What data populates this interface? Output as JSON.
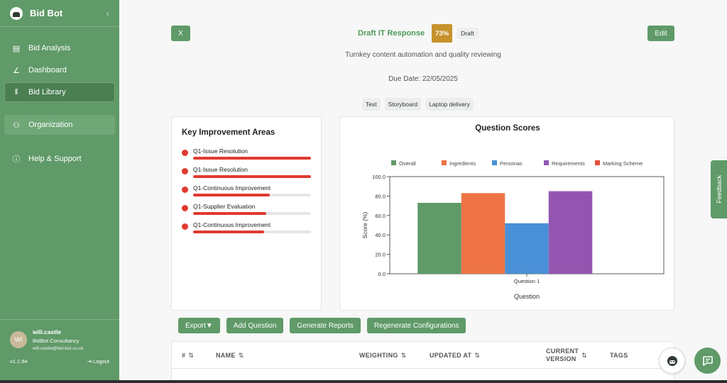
{
  "sidebar": {
    "app_name": "Bid Bot",
    "collapse_icon": "chevron-left-icon",
    "items": [
      {
        "label": "Bid Analysis",
        "icon": "document-icon"
      },
      {
        "label": "Dashboard",
        "icon": "line-chart-icon"
      },
      {
        "label": "Bid Library",
        "icon": "library-icon"
      }
    ],
    "organization": {
      "label": "Organization",
      "icon": "users-icon"
    },
    "help": {
      "label": "Help & Support",
      "icon": "help-circle-icon"
    },
    "user": {
      "initials": "WI",
      "name": "will.castle",
      "org": "BidBot Consultancy",
      "email": "will.castle@bid-bot.co.uk"
    },
    "version": "v1.1.94",
    "logout": "Logout"
  },
  "header": {
    "close_label": "X",
    "title": "Draft IT Response",
    "score": "73%",
    "status": "Draft",
    "edit_label": "Edit",
    "subtitle": "Turnkey content automation and quality reviewing",
    "due_date": "Due Date: 22/05/2025",
    "tags": [
      "Test",
      "Storyboard",
      "Laptop delivery"
    ]
  },
  "improvement": {
    "title": "Key Improvement Areas",
    "items": [
      {
        "label": "Q1-Issue Resolution",
        "progress": 1.0
      },
      {
        "label": "Q1-Issue Resolution",
        "progress": 1.0
      },
      {
        "label": "Q1-Continuous Improvement",
        "progress": 0.65
      },
      {
        "label": "Q1-Supplier Evaluation",
        "progress": 0.62
      },
      {
        "label": "Q1-Continuous Improvement",
        "progress": 0.6
      }
    ]
  },
  "chart_data": {
    "type": "bar",
    "title": "Question Scores",
    "categories": [
      "Question 1"
    ],
    "series": [
      {
        "name": "Overall",
        "values": [
          73
        ],
        "color": "#5f9a68"
      },
      {
        "name": "Ingredients",
        "values": [
          83
        ],
        "color": "#ee7445"
      },
      {
        "name": "Personas",
        "values": [
          52
        ],
        "color": "#4a90d6"
      },
      {
        "name": "Requirements",
        "values": [
          85
        ],
        "color": "#9356b0"
      },
      {
        "name": "Marking Scheme",
        "values": [
          0
        ],
        "color": "#e0503c"
      }
    ],
    "xlabel": "Question",
    "ylabel": "Score (%)",
    "ylim": [
      0,
      100
    ],
    "yticks": [
      "0.0",
      "20.0",
      "40.0",
      "60.0",
      "80.0",
      "100.0"
    ],
    "legend": "top"
  },
  "toolbar": {
    "export": "Export▼",
    "add_question": "Add Question",
    "generate_reports": "Generate Reports",
    "regenerate": "Regenerate Configurations"
  },
  "table": {
    "columns": [
      "#",
      "NAME",
      "WEIGHTING",
      "UPDATED AT",
      "CURRENT VERSION",
      "TAGS"
    ]
  },
  "feedback": "Feedback",
  "colors": {
    "brand": "#5f9a68",
    "score_badge": "#c7922c",
    "alert": "#e03a2f"
  }
}
